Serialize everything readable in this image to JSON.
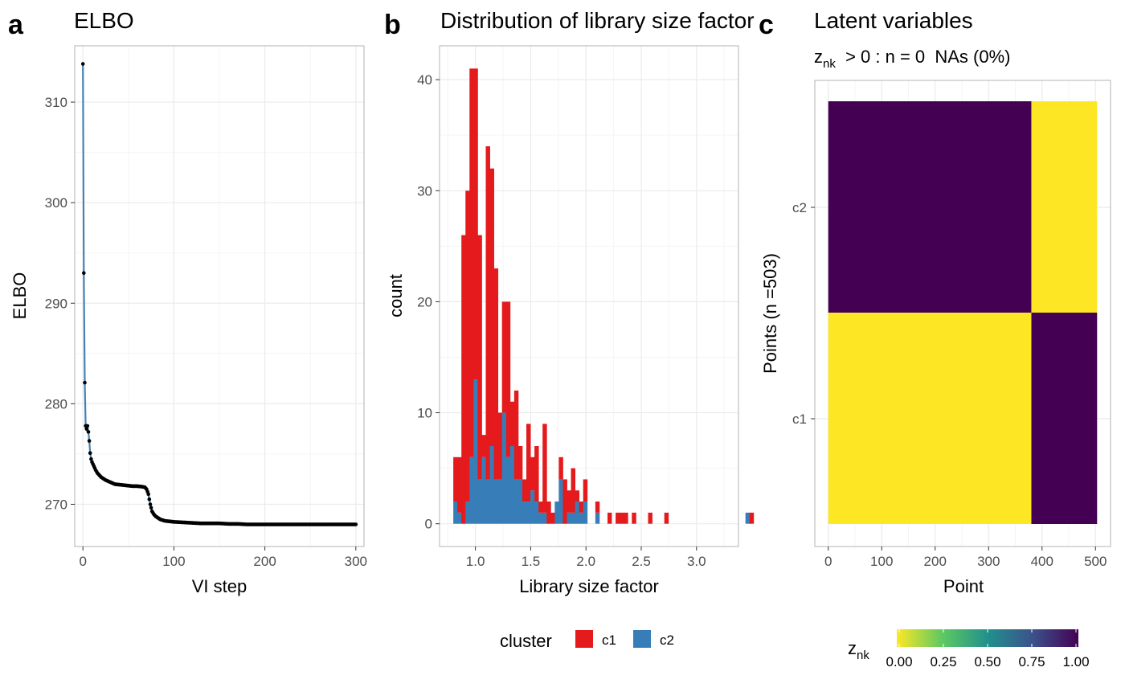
{
  "panels": [
    {
      "letter": "a"
    },
    {
      "letter": "b"
    },
    {
      "letter": "c"
    }
  ],
  "chart_data": [
    {
      "type": "line",
      "title": "ELBO",
      "xlabel": "VI step",
      "ylabel": "ELBO",
      "xlim": [
        -9,
        309
      ],
      "ylim": [
        265.8,
        315.6
      ],
      "xticks": [
        0,
        100,
        200,
        300
      ],
      "yticks": [
        270,
        280,
        290,
        300,
        310
      ],
      "line_color": "#4682b4",
      "point_color": "#000000",
      "points": [
        [
          0,
          313.8
        ],
        [
          1,
          293.0
        ],
        [
          2,
          282.1
        ],
        [
          3,
          277.8
        ],
        [
          4,
          277.5
        ],
        [
          5,
          277.8
        ],
        [
          6,
          277.2
        ],
        [
          7,
          276.3
        ],
        [
          8,
          275.1
        ],
        [
          9,
          274.5
        ],
        [
          10,
          274.2
        ],
        [
          12,
          273.8
        ],
        [
          14,
          273.4
        ],
        [
          16,
          273.1
        ],
        [
          18,
          272.9
        ],
        [
          20,
          272.7
        ],
        [
          25,
          272.4
        ],
        [
          30,
          272.2
        ],
        [
          35,
          272.0
        ],
        [
          40,
          271.95
        ],
        [
          45,
          271.9
        ],
        [
          50,
          271.85
        ],
        [
          55,
          271.8
        ],
        [
          60,
          271.8
        ],
        [
          65,
          271.75
        ],
        [
          68,
          271.7
        ],
        [
          70,
          271.5
        ],
        [
          72,
          271.0
        ],
        [
          74,
          270.0
        ],
        [
          76,
          269.3
        ],
        [
          78,
          269.0
        ],
        [
          80,
          268.8
        ],
        [
          85,
          268.5
        ],
        [
          90,
          268.35
        ],
        [
          95,
          268.3
        ],
        [
          100,
          268.25
        ],
        [
          110,
          268.2
        ],
        [
          120,
          268.15
        ],
        [
          130,
          268.1
        ],
        [
          140,
          268.1
        ],
        [
          150,
          268.1
        ],
        [
          160,
          268.05
        ],
        [
          170,
          268.05
        ],
        [
          180,
          268.0
        ],
        [
          190,
          268.0
        ],
        [
          200,
          268.0
        ],
        [
          210,
          268.0
        ],
        [
          220,
          268.0
        ],
        [
          230,
          268.0
        ],
        [
          240,
          268.0
        ],
        [
          250,
          268.0
        ],
        [
          260,
          268.0
        ],
        [
          270,
          268.0
        ],
        [
          280,
          268.0
        ],
        [
          290,
          268.0
        ],
        [
          300,
          268.0
        ]
      ]
    },
    {
      "type": "bar",
      "title": "Distribution of library size factor",
      "xlabel": "Library size factor",
      "ylabel": "count",
      "xlim": [
        0.6757,
        3.3793
      ],
      "ylim": [
        -2.05,
        43.05
      ],
      "xticks": [
        1.0,
        1.5,
        2.0,
        2.5,
        3.0
      ],
      "xtick_labels": [
        "1.0",
        "1.5",
        "2.0",
        "2.5",
        "3.0"
      ],
      "yticks": [
        0,
        10,
        20,
        30,
        40
      ],
      "bin_start": 0.8,
      "bin_width": 0.0367,
      "legend_title": "cluster",
      "legend_position": "bottom",
      "series": [
        {
          "name": "c2",
          "color": "#377eb8",
          "values": [
            2,
            1,
            0,
            2,
            6,
            13,
            4,
            6,
            4,
            7,
            4,
            4,
            10,
            6,
            7,
            4,
            4,
            2,
            2,
            3,
            2,
            1,
            1,
            0,
            0,
            2,
            4,
            0,
            1,
            1,
            2,
            1,
            2,
            0,
            0,
            1,
            0,
            0,
            0,
            0,
            0,
            0,
            0,
            0,
            0,
            0,
            0,
            0,
            0,
            0,
            0,
            0,
            0,
            0,
            0,
            0,
            0,
            0,
            0,
            0,
            0,
            0,
            0,
            0,
            0,
            0,
            0,
            0,
            0,
            0,
            0,
            0,
            1,
            0
          ]
        },
        {
          "name": "c1",
          "color": "#e41a1c",
          "values": [
            4,
            5,
            26,
            28,
            35,
            28,
            22,
            2,
            30,
            25,
            19,
            6,
            10,
            14,
            4,
            8,
            3,
            2,
            7,
            3,
            5,
            1,
            8,
            2,
            1,
            0,
            2,
            4,
            2,
            4,
            1,
            1,
            2,
            0,
            0,
            1,
            0,
            0,
            1,
            0,
            1,
            1,
            1,
            0,
            1,
            0,
            0,
            0,
            1,
            0,
            0,
            0,
            1,
            0,
            0,
            0,
            0,
            0,
            0,
            0,
            0,
            0,
            0,
            0,
            0,
            0,
            0,
            0,
            0,
            0,
            0,
            0,
            0,
            1
          ]
        }
      ]
    },
    {
      "type": "heatmap",
      "title": "Latent variables",
      "subtitle": "z",
      "subtitle_sub": "nk",
      "subtitle_rest": "  > 0 : n = 0  NAs (0%)",
      "xlabel": "Point",
      "ylabel": "Points (n =503)",
      "xlim": [
        -25.15,
        528.15
      ],
      "xticks": [
        0,
        100,
        200,
        300,
        400,
        500
      ],
      "rows": [
        "c1",
        "c2"
      ],
      "split_at": 380,
      "n": 503,
      "cells": [
        {
          "row": "c2",
          "x0": 0,
          "x1": 380,
          "value": 1.0
        },
        {
          "row": "c2",
          "x0": 380,
          "x1": 503,
          "value": 0.0
        },
        {
          "row": "c1",
          "x0": 0,
          "x1": 380,
          "value": 0.0
        },
        {
          "row": "c1",
          "x0": 380,
          "x1": 503,
          "value": 1.0
        }
      ],
      "colorbar_title": "z",
      "colorbar_title_sub": "nk",
      "colorbar_ticks": [
        "0.00",
        "0.25",
        "0.50",
        "0.75",
        "1.00"
      ],
      "colorbar_stops": [
        "#fde725",
        "#5ec962",
        "#21918c",
        "#3b528b",
        "#440154"
      ]
    }
  ]
}
